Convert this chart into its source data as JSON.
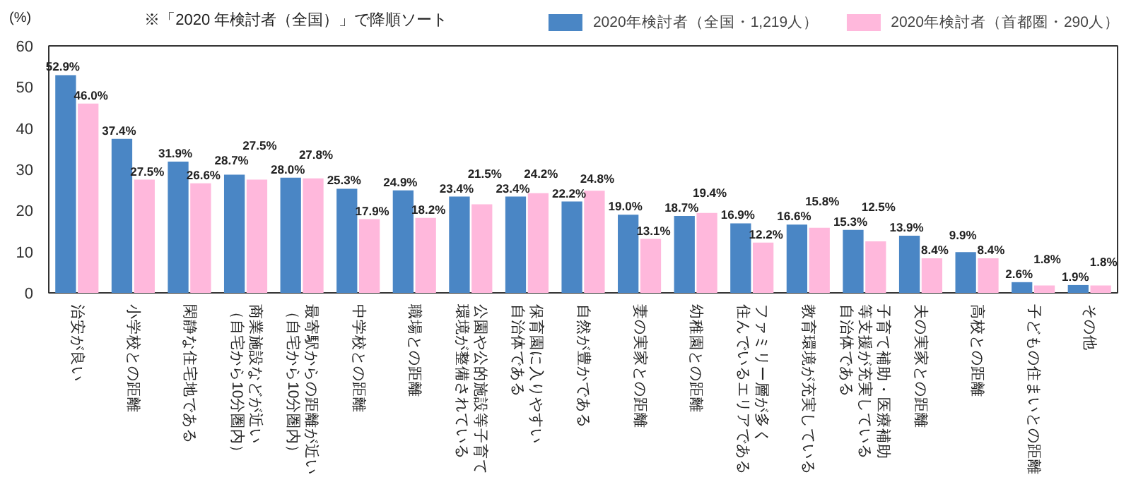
{
  "chart_data": {
    "type": "bar",
    "ylabel": "(%)",
    "annotations": [
      "※「2020 年検討者（全国）」で降順ソート"
    ],
    "categories": [
      "治安が良い",
      "小学校との距離",
      "閑静な住宅地である",
      "商業施設などが近い（自宅から10分圏内）",
      "最寄駅からの距離が近い（自宅から10分圏内）",
      "中学校との距離",
      "職場との距離",
      "公園や公的施設等子育て環境が整備されている",
      "保育園に入りやすい自治体である",
      "自然が豊かである",
      "妻の実家との距離",
      "幼稚園との距離",
      "ファミリー層が多く住んでいるエリアである",
      "教育環境が充実している",
      "子育て補助・医療補助等支援が充実している自治体である",
      "夫の実家との距離",
      "高校との距離",
      "子どもの住まいとの距離",
      "その他"
    ],
    "series": [
      {
        "name": "2020年検討者（全国・1,219人）",
        "color": "#4a86c5",
        "values": [
          52.9,
          37.4,
          31.9,
          28.7,
          28.0,
          25.3,
          24.9,
          23.4,
          23.4,
          22.2,
          19.0,
          18.7,
          16.9,
          16.6,
          15.3,
          13.9,
          9.9,
          2.6,
          1.9
        ],
        "value_labels": [
          "52.9%",
          "37.4%",
          "31.9%",
          "28.7%",
          "28.0%",
          "25.3%",
          "24.9%",
          "23.4%",
          "23.4%",
          "22.2%",
          "19.0%",
          "18.7%",
          "16.9%",
          "16.6%",
          "15.3%",
          "13.9%",
          "9.9%",
          "2.6%",
          "1.9%"
        ]
      },
      {
        "name": "2020年検討者（首都圏・290人）",
        "color": "#ffb8dc",
        "values": [
          46.0,
          27.5,
          26.6,
          27.5,
          27.8,
          17.9,
          18.2,
          21.5,
          24.2,
          24.8,
          13.1,
          19.4,
          12.2,
          15.8,
          12.5,
          8.4,
          8.4,
          1.8,
          1.8
        ],
        "value_labels": [
          "46.0%",
          "27.5%",
          "26.6%",
          "27.5%",
          "27.8%",
          "17.9%",
          "18.2%",
          "21.5%",
          "24.2%",
          "24.8%",
          "13.1%",
          "19.4%",
          "12.2%",
          "15.8%",
          "12.5%",
          "8.4%",
          "8.4%",
          "1.8%",
          "1.8%"
        ]
      }
    ],
    "ylim": [
      0,
      60
    ],
    "yticks": [
      0,
      10,
      20,
      30,
      40,
      50,
      60
    ],
    "grid": false,
    "legend": "top right"
  }
}
